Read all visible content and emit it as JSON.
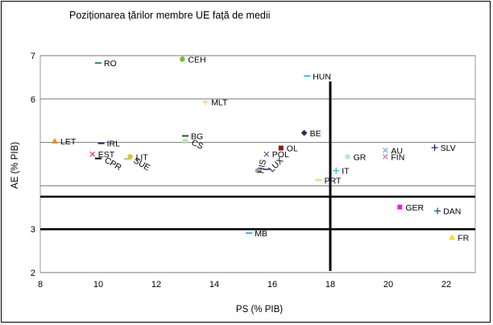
{
  "chart_data": {
    "type": "scatter",
    "title": "Poziționarea țărilor membre UE față de medii",
    "xlabel": "PS (% PIB)",
    "ylabel": "AE (% PIB)",
    "xlim": [
      8,
      23
    ],
    "ylim": [
      2,
      7
    ],
    "xticks": [
      8,
      10,
      12,
      14,
      16,
      18,
      20,
      22
    ],
    "yticks": [
      2,
      3,
      4,
      5,
      6,
      7
    ],
    "x_tick_labels": [
      "8",
      "10",
      "12",
      "14",
      "16",
      "18",
      "20",
      "22"
    ],
    "y_tick_labels": [
      "2",
      "3",
      "",
      "",
      "6",
      "7"
    ],
    "grid": "horizontal",
    "legend": "none",
    "reference_lines": {
      "vertical_x": 18.0,
      "horizontal_y": [
        3.0,
        3.75
      ]
    },
    "points": [
      {
        "label": "RO",
        "x": 10.0,
        "y": 6.83,
        "color": "#2e8b57",
        "marker": "dash"
      },
      {
        "label": "CEH",
        "x": 12.9,
        "y": 6.92,
        "color": "#7cbb3c",
        "marker": "circle"
      },
      {
        "label": "HUN",
        "x": 17.2,
        "y": 6.53,
        "color": "#2fbfcf",
        "marker": "dash"
      },
      {
        "label": "MLT",
        "x": 13.7,
        "y": 5.93,
        "color": "#f2c98a",
        "marker": "plus"
      },
      {
        "label": "BE",
        "x": 17.1,
        "y": 5.22,
        "color": "#1f2a6e",
        "marker": "diamond"
      },
      {
        "label": "BG",
        "x": 13.0,
        "y": 5.15,
        "color": "#225522",
        "marker": "dash"
      },
      {
        "label": "CS",
        "x": 13.0,
        "y": 5.03,
        "color": "#bfe0bf",
        "marker": "square"
      },
      {
        "label": "LET",
        "x": 8.5,
        "y": 5.03,
        "color": "#f08c1e",
        "marker": "triangle"
      },
      {
        "label": "IRL",
        "x": 10.1,
        "y": 4.98,
        "color": "#1f2a6e",
        "marker": "dash"
      },
      {
        "label": "OL",
        "x": 16.3,
        "y": 4.87,
        "color": "#8b1a1a",
        "marker": "square"
      },
      {
        "label": "AU",
        "x": 19.9,
        "y": 4.82,
        "color": "#66b3e6",
        "marker": "x"
      },
      {
        "label": "SLV",
        "x": 21.6,
        "y": 4.88,
        "color": "#1f2a6e",
        "marker": "plus"
      },
      {
        "label": "EST",
        "x": 9.8,
        "y": 4.73,
        "color": "#d64040",
        "marker": "x"
      },
      {
        "label": "POL",
        "x": 15.8,
        "y": 4.73,
        "color": "#5a4fa0",
        "marker": "x"
      },
      {
        "label": "GR",
        "x": 18.6,
        "y": 4.67,
        "color": "#bfe0e6",
        "marker": "circle"
      },
      {
        "label": "FIN",
        "x": 19.9,
        "y": 4.67,
        "color": "#d070c8",
        "marker": "x"
      },
      {
        "label": "LIT",
        "x": 11.1,
        "y": 4.67,
        "color": "#e8c020",
        "marker": "circle"
      },
      {
        "label": "CPR",
        "x": 10.0,
        "y": 4.63,
        "color": "#000000",
        "marker": "dash"
      },
      {
        "label": "SUE",
        "x": 11.0,
        "y": 4.62,
        "color": "#b9c39a",
        "marker": "dash"
      },
      {
        "label": "LUX",
        "x": 15.8,
        "y": 4.38,
        "color": "#6a4f8a",
        "marker": "dash"
      },
      {
        "label": "HIS",
        "x": 15.5,
        "y": 4.35,
        "color": "#a0a0a0",
        "marker": "circle"
      },
      {
        "label": "IT",
        "x": 18.2,
        "y": 4.35,
        "color": "#2fbfcf",
        "marker": "plus"
      },
      {
        "label": "PRT",
        "x": 17.6,
        "y": 4.13,
        "color": "#f5d060",
        "marker": "dash"
      },
      {
        "label": "GER",
        "x": 20.4,
        "y": 3.51,
        "color": "#ee22cc",
        "marker": "square"
      },
      {
        "label": "DAN",
        "x": 21.7,
        "y": 3.42,
        "color": "#1f5a7a",
        "marker": "plus"
      },
      {
        "label": "MB",
        "x": 15.2,
        "y": 2.91,
        "color": "#2fbfcf",
        "marker": "dash"
      },
      {
        "label": "FR",
        "x": 22.2,
        "y": 2.81,
        "color": "#f0e020",
        "marker": "triangle"
      }
    ]
  }
}
